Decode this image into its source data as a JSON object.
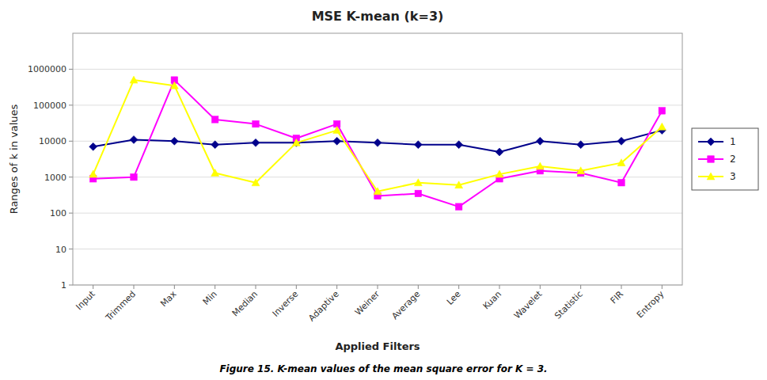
{
  "chart_data": {
    "type": "line",
    "title": "MSE K-mean (k=3)",
    "x_label": "Applied Filters",
    "y_label": "Ranges of k in values",
    "caption": "Figure 15. K-mean values of the mean square error for K = 3.",
    "categories": [
      "Input",
      "Trimmed",
      "Max",
      "Min",
      "Median",
      "Inverse",
      "Adaptive",
      "Weiner",
      "Average",
      "Lee",
      "Kuan",
      "Wavelet",
      "Statistic",
      "FIR",
      "Entropy"
    ],
    "series": [
      {
        "name": "1",
        "color": "#00008B",
        "marker": "diamond",
        "values": [
          7000,
          11000,
          10000,
          8000,
          9000,
          9000,
          10000,
          9000,
          8000,
          8000,
          5000,
          10000,
          8000,
          10000,
          20000
        ]
      },
      {
        "name": "2",
        "color": "#FF00FF",
        "marker": "square",
        "values": [
          900,
          1000,
          500000,
          40000,
          30000,
          12000,
          30000,
          300,
          350,
          150,
          900,
          1500,
          1300,
          700,
          70000
        ]
      },
      {
        "name": "3",
        "color": "#FFFF00",
        "marker": "triangle-up",
        "values": [
          1200,
          500000,
          350000,
          1300,
          700,
          9000,
          20000,
          400,
          700,
          600,
          1200,
          2000,
          1500,
          2500,
          25000
        ]
      }
    ],
    "ylim": [
      1,
      10000000
    ],
    "yticks": [
      1,
      10,
      100,
      1000,
      10000,
      100000,
      1000000
    ],
    "log": "y",
    "grid": true,
    "legend": "right"
  }
}
